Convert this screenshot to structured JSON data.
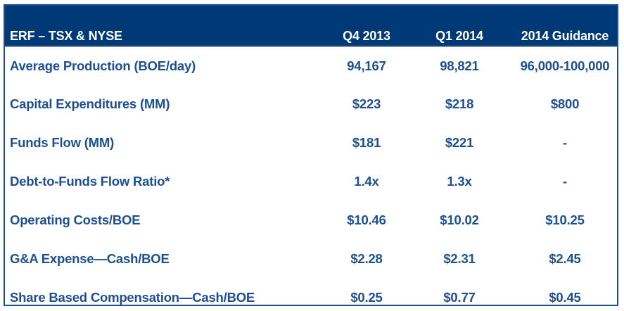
{
  "table": {
    "headers": {
      "label": "ERF – TSX & NYSE",
      "q4": "Q4 2013",
      "q1": "Q1 2014",
      "guidance": "2014 Guidance"
    },
    "rows": [
      {
        "label": "Average Production (BOE/day)",
        "q4": "94,167",
        "q1": "98,821",
        "guidance": "96,000-100,000"
      },
      {
        "label": "Capital Expenditures (MM)",
        "q4": "$223",
        "q1": "$218",
        "guidance": "$800"
      },
      {
        "label": "Funds Flow (MM)",
        "q4": "$181",
        "q1": "$221",
        "guidance": "-"
      },
      {
        "label": "Debt-to-Funds Flow Ratio*",
        "q4": "1.4x",
        "q1": "1.3x",
        "guidance": "-"
      },
      {
        "label": "Operating Costs/BOE",
        "q4": "$10.46",
        "q1": "$10.02",
        "guidance": "$10.25"
      },
      {
        "label": "G&A Expense—Cash/BOE",
        "q4": "$2.28",
        "q1": "$2.31",
        "guidance": "$2.45"
      },
      {
        "label": "Share Based Compensation—Cash/BOE",
        "q4": "$0.25",
        "q1": "$0.77",
        "guidance": "$0.45"
      }
    ]
  },
  "colors": {
    "header_background": "#003a76",
    "header_text": "#ffffff",
    "body_text": "#1e4f8f",
    "border": "#1d4f91"
  }
}
